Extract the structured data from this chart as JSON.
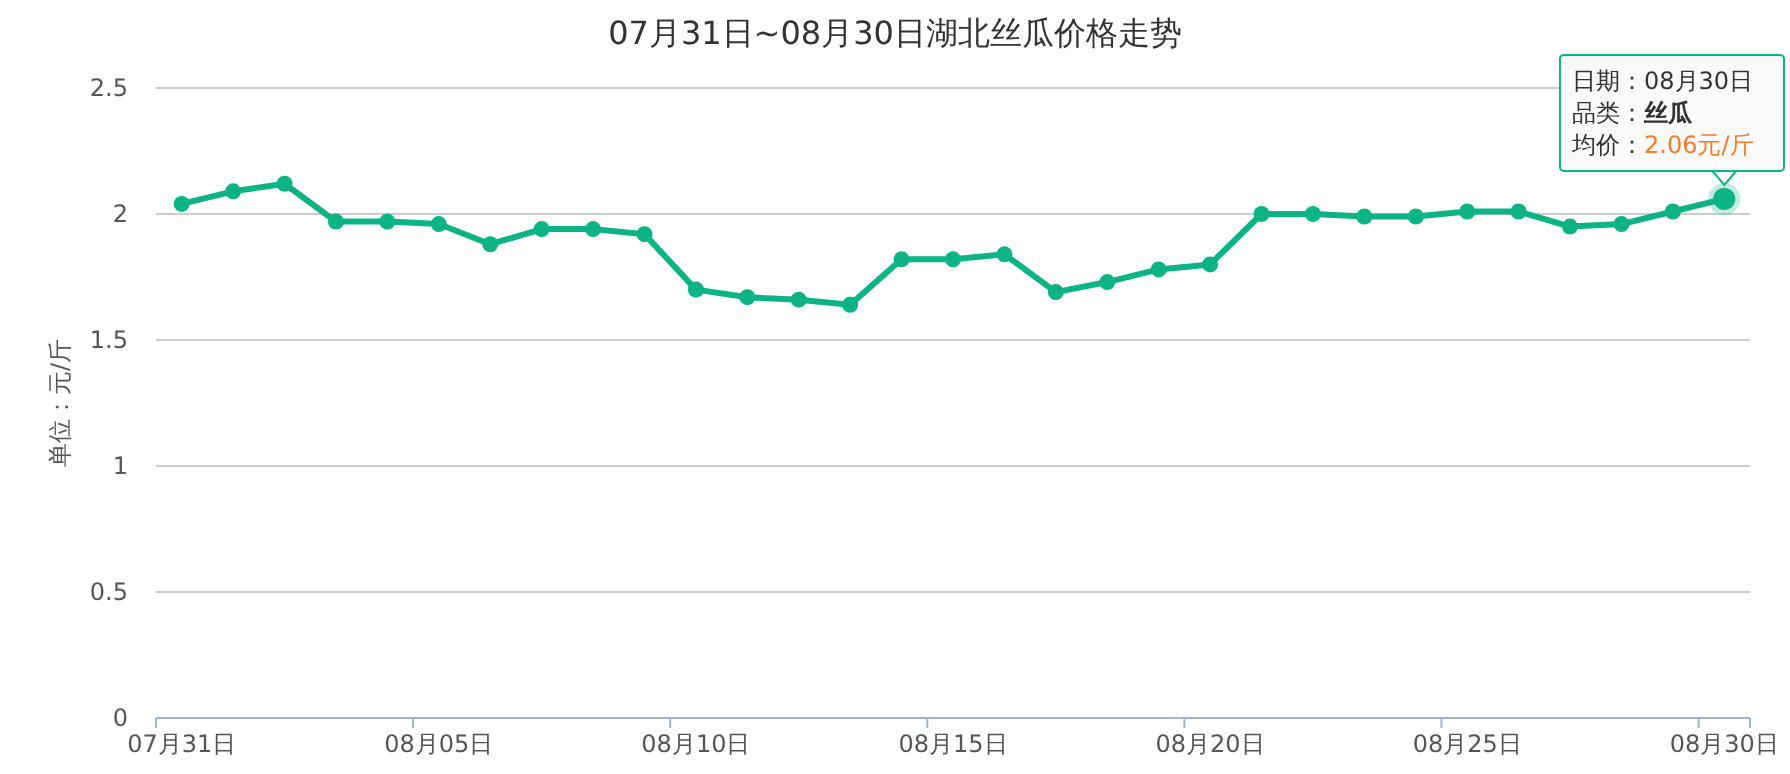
{
  "chart_data": {
    "type": "line",
    "title": "07月31日~08月30日湖北丝瓜价格走势",
    "ylabel": "单位：元/斤",
    "categories": [
      "07月31日",
      null,
      null,
      null,
      null,
      "08月05日",
      null,
      null,
      null,
      null,
      "08月10日",
      null,
      null,
      null,
      null,
      "08月15日",
      null,
      null,
      null,
      null,
      "08月20日",
      null,
      null,
      null,
      null,
      "08月25日",
      null,
      null,
      null,
      null,
      "08月30日"
    ],
    "series": [
      {
        "color": "#0bb385",
        "values": [
          2.04,
          2.09,
          2.12,
          1.97,
          1.97,
          1.96,
          1.88,
          1.94,
          1.94,
          1.92,
          1.7,
          1.67,
          1.66,
          1.64,
          1.82,
          1.82,
          1.84,
          1.69,
          1.73,
          1.78,
          1.8,
          2.0,
          2.0,
          1.99,
          1.99,
          2.01,
          2.01,
          1.95,
          1.96,
          2.01,
          2.06
        ]
      }
    ],
    "ylim": [
      0,
      2.5
    ],
    "yticks": [
      0,
      0.5,
      1,
      1.5,
      2,
      2.5
    ],
    "grid": "y",
    "marker": "circle",
    "line_style": "solid",
    "annotations": [
      "日期：08月30日",
      "品类：丝瓜",
      {
        "text": "均价：2.06元/斤",
        "x": "08月30日",
        "y": 2.06
      }
    ]
  }
}
